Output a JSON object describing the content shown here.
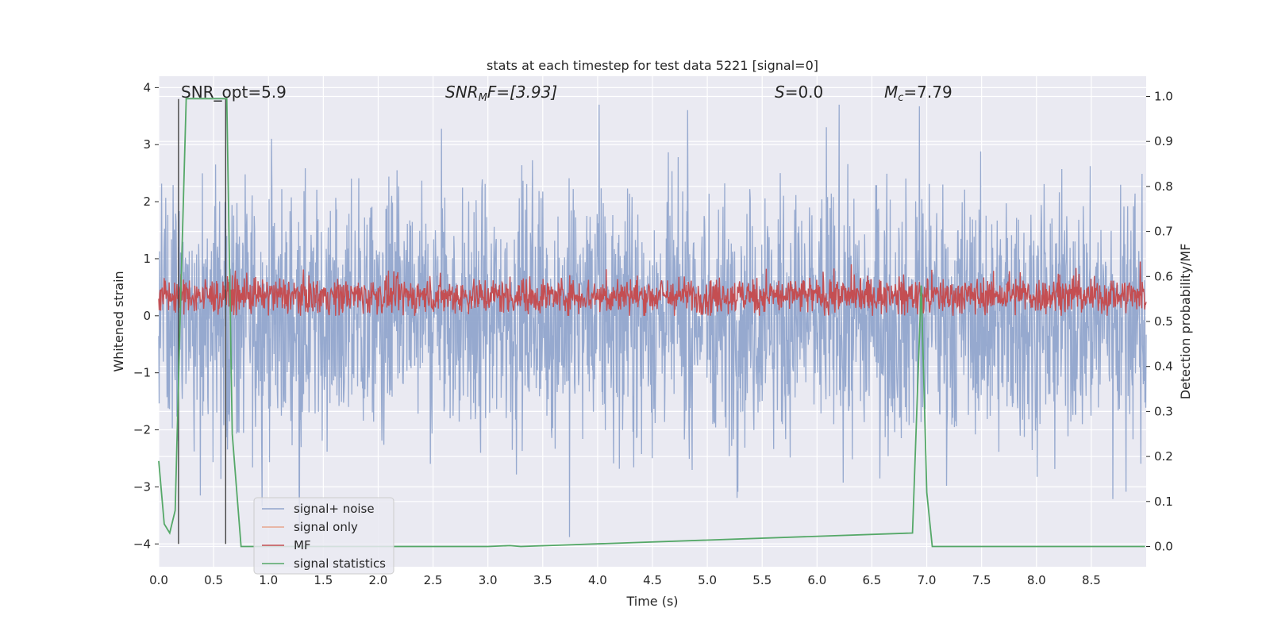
{
  "chart_data": {
    "type": "line",
    "title": "stats at each timestep for test data 5221 [signal=0]",
    "xlabel": "Time (s)",
    "ylabel_left": "Whitened strain",
    "ylabel_right": "Detection probability/MF",
    "xlim": [
      0,
      9.0
    ],
    "ylim_left": [
      -4.4,
      4.2
    ],
    "ylim_right": [
      -0.045,
      1.045
    ],
    "x_ticks": [
      "0.0",
      "0.5",
      "1.0",
      "1.5",
      "2.0",
      "2.5",
      "3.0",
      "3.5",
      "4.0",
      "4.5",
      "5.0",
      "5.5",
      "6.0",
      "6.5",
      "7.0",
      "7.5",
      "8.0",
      "8.5"
    ],
    "y_ticks_left": [
      "4",
      "3",
      "2",
      "1",
      "0",
      "−1",
      "−2",
      "−3",
      "−4"
    ],
    "y_ticks_right": [
      "1.0",
      "0.9",
      "0.8",
      "0.7",
      "0.6",
      "0.5",
      "0.4",
      "0.3",
      "0.2",
      "0.1",
      "0.0"
    ],
    "annotations": {
      "snr_opt": "SNR_opt=5.9",
      "snr_mf_sym": "SNR",
      "snr_mf_sub": "M",
      "snr_mf_tail": "F=[3.93]",
      "s_sym": "S",
      "s_val": "=0.0",
      "mc_sym": "M",
      "mc_sub": "c",
      "mc_val": "=7.79"
    },
    "legend": {
      "placement": "lower-left",
      "entries": [
        {
          "label": "signal+ noise",
          "color": "#91a5cc"
        },
        {
          "label": "signal only",
          "color": "#e8a58c"
        },
        {
          "label": "MF",
          "color": "#c44e52"
        },
        {
          "label": "signal statistics",
          "color": "#55a868"
        }
      ]
    },
    "series": [
      {
        "name": "signal+ noise",
        "axis": "left",
        "color": "#91a5cc",
        "note": "dense noise, approx range -4 to 3.7"
      },
      {
        "name": "MF",
        "axis": "left",
        "color": "#c44e52",
        "note": "dense band approx 0 to 0.9"
      },
      {
        "name": "signal statistics",
        "axis": "right",
        "color": "#55a868",
        "x": [
          0.0,
          0.05,
          0.1,
          0.15,
          0.2,
          0.25,
          0.62,
          0.67,
          0.75,
          1.0,
          3.0,
          3.2,
          3.3,
          6.87,
          6.95,
          7.0,
          7.05,
          7.12,
          8.99
        ],
        "y": [
          0.19,
          0.05,
          0.03,
          0.08,
          0.55,
          0.995,
          0.995,
          0.25,
          0.0,
          0.0,
          0.0,
          0.002,
          0.0,
          0.03,
          0.58,
          0.12,
          0.0,
          0.0,
          0.0
        ]
      }
    ],
    "vlines": [
      0.18,
      0.61
    ],
    "vline_range_left": [
      -4.0,
      3.8
    ]
  }
}
